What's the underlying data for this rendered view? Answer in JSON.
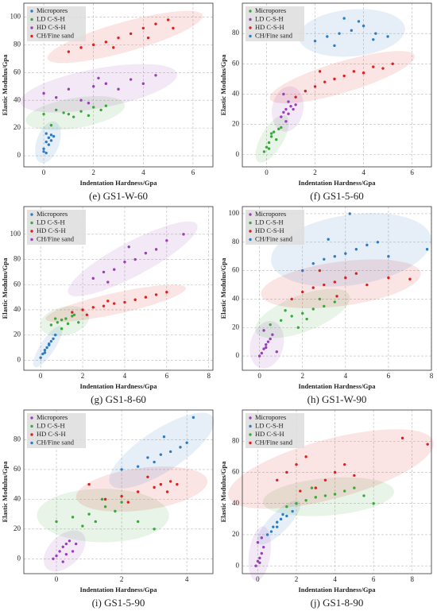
{
  "chart_data": [
    {
      "type": "scatter",
      "caption": "(e) GS1-W-60",
      "x_label": "Indentation Hardness/Gpa",
      "y_label": "Elastic Modulus/Gpa",
      "xlim": [
        -0.8,
        6.8
      ],
      "ylim": [
        -8,
        110
      ],
      "xticks": [
        0,
        2,
        4,
        6
      ],
      "yticks": [
        0,
        20,
        40,
        60,
        80,
        100
      ],
      "grid": true,
      "legend": "upper left",
      "series": [
        {
          "name": "Micropores",
          "color": "#2f7bc4",
          "x": [
            0.0,
            0.1,
            0.2,
            0.3,
            0.1,
            0.4,
            0.2,
            0.0,
            0.3,
            0.1
          ],
          "values": [
            5,
            10,
            13,
            15,
            2,
            14,
            8,
            3,
            11,
            16
          ]
        },
        {
          "name": "LD C-S-H",
          "color": "#3aa83a",
          "x": [
            0,
            0.5,
            1,
            1.5,
            2,
            2.5,
            1.2,
            0.8,
            1.8,
            2.3,
            0.3
          ],
          "values": [
            30,
            33,
            30,
            32,
            35,
            36,
            28,
            31,
            29,
            33,
            22
          ]
        },
        {
          "name": "HD C-S-H",
          "color": "#9a3fb8",
          "x": [
            0,
            0.5,
            1,
            1.5,
            2,
            2.5,
            3,
            3.5,
            4,
            4.5,
            1.8,
            2.2
          ],
          "values": [
            45,
            42,
            48,
            40,
            50,
            52,
            48,
            55,
            52,
            58,
            38,
            56
          ]
        },
        {
          "name": "CH/Fine sand",
          "color": "#e0201e",
          "x": [
            1,
            1.5,
            2,
            2.5,
            3,
            3.5,
            4,
            4.5,
            5,
            5.2,
            2.8,
            4.2
          ],
          "values": [
            75,
            78,
            80,
            82,
            85,
            88,
            92,
            95,
            98,
            92,
            78,
            85
          ]
        }
      ]
    },
    {
      "type": "scatter",
      "caption": "(f) GS1-5-60",
      "x_label": "Indentation Hardness/Gpa",
      "y_label": "Elastic Modulus/Gpa",
      "xlim": [
        -1,
        6.8
      ],
      "ylim": [
        -8,
        100
      ],
      "xticks": [
        0,
        2,
        4,
        6
      ],
      "yticks": [
        0,
        20,
        40,
        60,
        80
      ],
      "grid": true,
      "legend": "upper left",
      "series": [
        {
          "name": "Micropores",
          "color": "#3aa83a",
          "x": [
            -0.1,
            0,
            0.1,
            0.2,
            0.3,
            0.5,
            0.6,
            0.1,
            0.4,
            0.2
          ],
          "values": [
            2,
            5,
            8,
            12,
            15,
            17,
            18,
            4,
            10,
            14
          ]
        },
        {
          "name": "LD C-S-H",
          "color": "#9a3fb8",
          "x": [
            0.6,
            0.7,
            0.8,
            0.9,
            1.0,
            1.1,
            0.8,
            0.9,
            1.2,
            0.7
          ],
          "values": [
            25,
            28,
            30,
            27,
            32,
            30,
            22,
            35,
            33,
            40
          ]
        },
        {
          "name": "HD C-S-H",
          "color": "#e0201e",
          "x": [
            1.2,
            1.6,
            2,
            2.4,
            2.8,
            3.2,
            3.6,
            4,
            4.4,
            4.8,
            5.2,
            2.2
          ],
          "values": [
            38,
            42,
            45,
            48,
            50,
            52,
            55,
            54,
            58,
            57,
            60,
            55
          ]
        },
        {
          "name": "CH/Fine sand",
          "color": "#2f7bc4",
          "x": [
            2,
            2.5,
            3,
            3.5,
            4,
            4.5,
            5,
            2.8,
            3.8,
            4.4,
            3.2
          ],
          "values": [
            75,
            78,
            80,
            82,
            85,
            80,
            78,
            72,
            88,
            76,
            90
          ]
        }
      ]
    },
    {
      "type": "scatter",
      "caption": "(g) GS1-8-60",
      "x_label": "Indentation Hardness/Gpa",
      "y_label": "Elastic Modulus/Gpa",
      "xlim": [
        -0.8,
        8.2
      ],
      "ylim": [
        -8,
        122
      ],
      "xticks": [
        0,
        2,
        4,
        6,
        8
      ],
      "yticks": [
        0,
        20,
        40,
        60,
        80,
        100
      ],
      "grid": true,
      "legend": "upper left",
      "series": [
        {
          "name": "Micropores",
          "color": "#2f7bc4",
          "x": [
            0,
            0.1,
            0.2,
            0.3,
            0.4,
            0.5,
            0.6,
            0.7,
            0.2,
            0.4
          ],
          "values": [
            2,
            5,
            8,
            10,
            13,
            15,
            17,
            20,
            6,
            12
          ]
        },
        {
          "name": "LD C-S-H",
          "color": "#3aa83a",
          "x": [
            0.5,
            0.8,
            1,
            1.2,
            1.5,
            1.8,
            1,
            0.7,
            1.3,
            1.6
          ],
          "values": [
            28,
            30,
            32,
            33,
            35,
            30,
            25,
            33,
            29,
            36
          ]
        },
        {
          "name": "HD C-S-H",
          "color": "#e0201e",
          "x": [
            1.5,
            2,
            2.5,
            3,
            3.5,
            4,
            4.5,
            5,
            5.5,
            6,
            2.2,
            3.2
          ],
          "values": [
            38,
            40,
            42,
            43,
            45,
            46,
            48,
            50,
            52,
            54,
            36,
            47
          ]
        },
        {
          "name": "CH/Fine sand",
          "color": "#9a3fb8",
          "x": [
            2.5,
            3,
            3.5,
            4,
            4.5,
            5,
            5.5,
            6,
            6.8,
            3.2,
            4.2
          ],
          "values": [
            65,
            70,
            72,
            78,
            80,
            85,
            88,
            95,
            100,
            62,
            90
          ]
        }
      ]
    },
    {
      "type": "scatter",
      "caption": "(h) GS1-W-90",
      "x_label": "Indentation Hardness/Gpa",
      "y_label": "Elastic Modulus/Gpa",
      "xlim": [
        -0.8,
        8
      ],
      "ylim": [
        -10,
        105
      ],
      "xticks": [
        0,
        2,
        4,
        6,
        8
      ],
      "yticks": [
        0,
        20,
        40,
        60,
        80,
        100
      ],
      "grid": true,
      "legend": "upper left",
      "series": [
        {
          "name": "Micropores",
          "color": "#9a3fb8",
          "x": [
            0,
            0.1,
            0.2,
            0.3,
            0.4,
            0.5,
            0.6,
            0.2,
            0.8,
            0.3
          ],
          "values": [
            0,
            2,
            5,
            8,
            10,
            12,
            15,
            18,
            3,
            6
          ]
        },
        {
          "name": "LD C-S-H",
          "color": "#3aa83a",
          "x": [
            0.5,
            1,
            1.5,
            2,
            2.5,
            3,
            3.5,
            1.2,
            2.2,
            2.8,
            1.8
          ],
          "values": [
            22,
            25,
            28,
            30,
            33,
            35,
            38,
            32,
            26,
            40,
            20
          ]
        },
        {
          "name": "HD C-S-H",
          "color": "#e0201e",
          "x": [
            1.5,
            2,
            2.5,
            3,
            3.5,
            4,
            4.5,
            5,
            6,
            7,
            2.8,
            3.6
          ],
          "values": [
            40,
            45,
            48,
            50,
            52,
            55,
            58,
            50,
            55,
            54,
            60,
            42
          ]
        },
        {
          "name": "CH/Fine sand",
          "color": "#2f7bc4",
          "x": [
            2,
            2.5,
            3,
            3.5,
            4,
            4.5,
            5,
            5.5,
            6,
            7.8,
            3.2,
            4.2
          ],
          "values": [
            60,
            65,
            68,
            70,
            72,
            75,
            78,
            80,
            70,
            75,
            82,
            100
          ]
        }
      ]
    },
    {
      "type": "scatter",
      "caption": "(i) GS1-5-90",
      "x_label": "Indentation Hardness/Gpa",
      "y_label": "Elastic Modulus/Gpa",
      "xlim": [
        -1,
        4.8
      ],
      "ylim": [
        -10,
        100
      ],
      "xticks": [
        0,
        2,
        4
      ],
      "yticks": [
        0,
        20,
        40,
        60,
        80
      ],
      "grid": true,
      "legend": "upper left",
      "series": [
        {
          "name": "Micropores",
          "color": "#9a3fb8",
          "x": [
            -0.1,
            0,
            0.1,
            0.2,
            0.3,
            0.4,
            0.5,
            0.6,
            0.2,
            0.3
          ],
          "values": [
            0,
            2,
            5,
            8,
            10,
            12,
            5,
            10,
            -2,
            3
          ]
        },
        {
          "name": "LD C-S-H",
          "color": "#3aa83a",
          "x": [
            0,
            0.5,
            1,
            1.2,
            1.5,
            1.8,
            2,
            2.5,
            3,
            0.8,
            1.4
          ],
          "values": [
            25,
            28,
            30,
            25,
            35,
            32,
            38,
            25,
            20,
            22,
            40
          ]
        },
        {
          "name": "HD C-S-H",
          "color": "#e0201e",
          "x": [
            1.5,
            2,
            2.5,
            3,
            3.2,
            3.5,
            3.7,
            2.8,
            3.4,
            1,
            2.2
          ],
          "values": [
            40,
            42,
            45,
            48,
            50,
            52,
            50,
            55,
            45,
            50,
            38
          ]
        },
        {
          "name": "CH/Fine sand",
          "color": "#2f7bc4",
          "x": [
            2,
            2.5,
            3,
            3.2,
            3.5,
            3.8,
            4,
            4.2,
            3.3,
            2.8
          ],
          "values": [
            60,
            62,
            65,
            70,
            72,
            75,
            78,
            95,
            82,
            68
          ]
        }
      ]
    },
    {
      "type": "scatter",
      "caption": "(j) GS1-8-90",
      "x_label": "Indentation Hardness/Gpa",
      "y_label": "Elastic Modulus/Gpa",
      "xlim": [
        -0.8,
        9
      ],
      "ylim": [
        -5,
        100
      ],
      "xticks": [
        0,
        2,
        4,
        6,
        8
      ],
      "yticks": [
        0,
        20,
        40,
        60,
        80
      ],
      "grid": true,
      "legend": "upper left",
      "series": [
        {
          "name": "Micropores",
          "color": "#9a3fb8",
          "x": [
            -0.1,
            0,
            0.1,
            0.2,
            0.3,
            0,
            0.2,
            0.1
          ],
          "values": [
            0,
            3,
            5,
            8,
            12,
            15,
            18,
            2
          ]
        },
        {
          "name": "LD C-S-H",
          "color": "#2f7bc4",
          "x": [
            0.5,
            0.8,
            1,
            1.2,
            1.5,
            1.8,
            1,
            1.3,
            0.7
          ],
          "values": [
            20,
            25,
            28,
            30,
            32,
            35,
            25,
            33,
            22
          ]
        },
        {
          "name": "HD C-S-H",
          "color": "#3aa83a",
          "x": [
            1.5,
            2,
            2.5,
            3,
            3.5,
            4,
            4.5,
            5,
            5.5,
            6,
            2.8
          ],
          "values": [
            38,
            40,
            42,
            44,
            45,
            46,
            48,
            50,
            45,
            40,
            50
          ]
        },
        {
          "name": "CH/Fine sand",
          "color": "#e0201e",
          "x": [
            1,
            1.5,
            2,
            2.5,
            3,
            3.5,
            4,
            4.5,
            5,
            7.5,
            8.8,
            2.2
          ],
          "values": [
            55,
            60,
            65,
            70,
            50,
            55,
            60,
            65,
            58,
            82,
            78,
            48
          ]
        }
      ]
    }
  ]
}
